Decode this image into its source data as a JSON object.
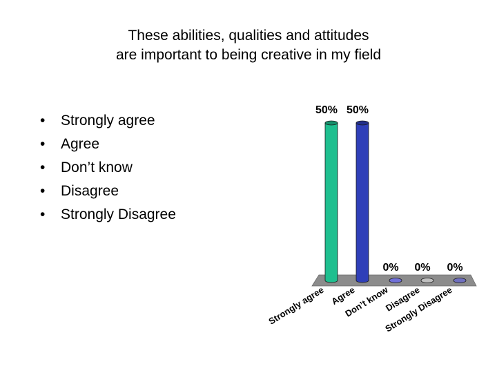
{
  "slide": {
    "title_line1": "These abilities, qualities and attitudes",
    "title_line2": "are important to being creative in my field",
    "bullet_char": "•",
    "bullets": [
      "Strongly agree",
      "Agree",
      "Don’t know",
      "Disagree",
      "Strongly Disagree"
    ]
  },
  "chart_data": {
    "type": "bar",
    "style": "3d-cylinder",
    "categories": [
      "Strongly agree",
      "Agree",
      "Don’t know",
      "Disagree",
      "Strongly Disagree"
    ],
    "values": [
      50,
      50,
      0,
      0,
      0
    ],
    "value_labels": [
      "50%",
      "50%",
      "0%",
      "0%",
      "0%"
    ],
    "ylim": [
      0,
      50
    ],
    "grid": false,
    "legend": "none",
    "colors": [
      "#1fbf8f",
      "#2f3fb8",
      "#7070d8",
      "#c0c0c0",
      "#7070c0"
    ]
  }
}
